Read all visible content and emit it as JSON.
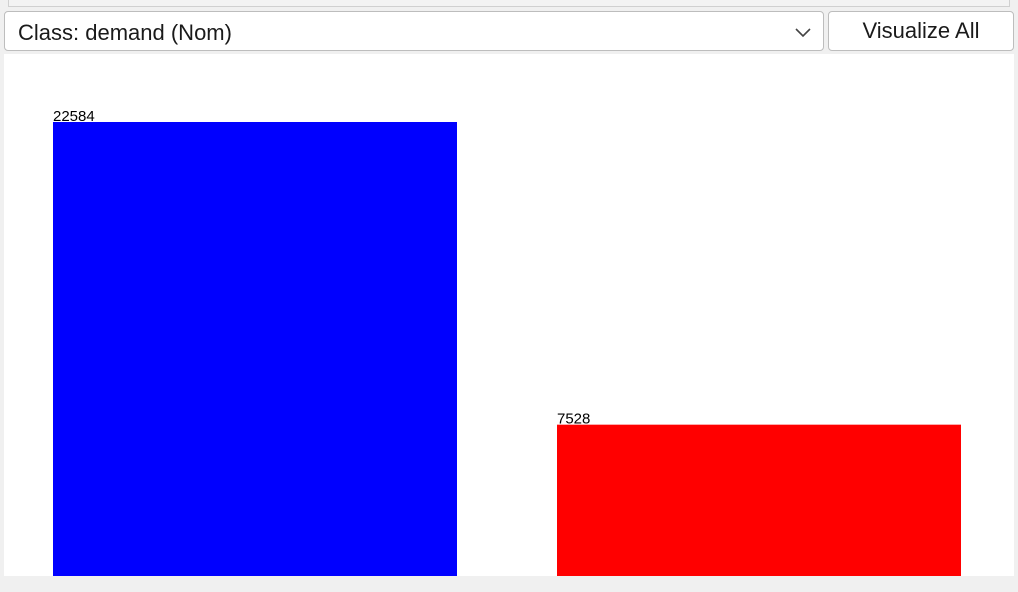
{
  "class_selector": {
    "label": "Class: demand (Nom)"
  },
  "toolbar": {
    "visualize_all_label": "Visualize All"
  },
  "chart_data": {
    "type": "bar",
    "categories": [
      "",
      ""
    ],
    "values": [
      22584,
      7528
    ],
    "value_labels": [
      "22584",
      "7528"
    ],
    "colors": [
      "#0000ff",
      "#ff0000"
    ],
    "title": "",
    "xlabel": "",
    "ylabel": "",
    "ylim": [
      0,
      22584
    ],
    "grid": false
  }
}
